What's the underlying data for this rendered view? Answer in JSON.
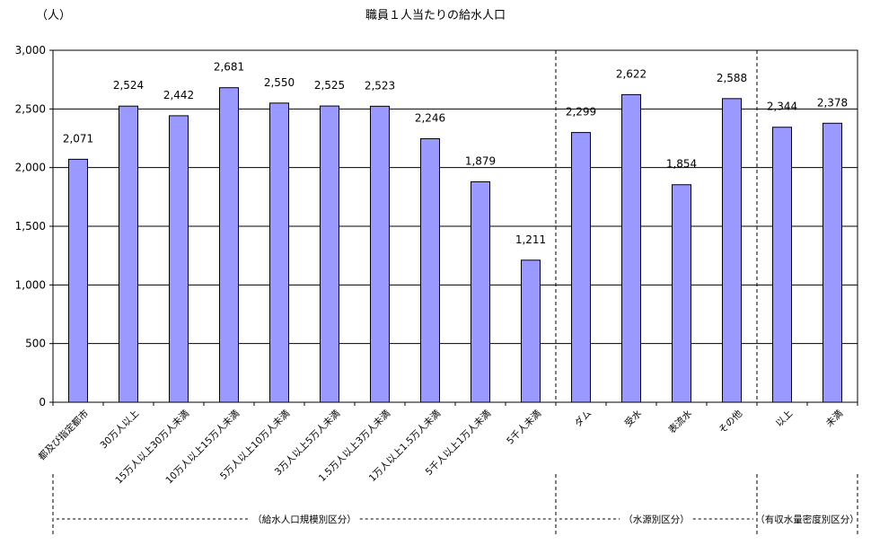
{
  "chart_data": {
    "type": "bar",
    "title": "職員１人当たりの給水人口",
    "ylabel": "（人）",
    "ylim": [
      0,
      3000
    ],
    "yticks": [
      0,
      500,
      1000,
      1500,
      2000,
      2500,
      3000
    ],
    "ytick_labels": [
      "0",
      "500",
      "1,000",
      "1,500",
      "2,000",
      "2,500",
      "3,000"
    ],
    "grid": true,
    "bar_color": "#9999ff",
    "categories": [
      "都及び指定都市",
      "30万人以上",
      "15万人以上30万人未満",
      "10万人以上15万人未満",
      "5万人以上10万人未満",
      "3万人以上5万人未満",
      "1.5万人以上3万人未満",
      "1万人以上1.5万人未満",
      "5千人以上1万人未満",
      "5千人未満",
      "ダム",
      "受水",
      "表流水",
      "その他",
      "以上",
      "未満"
    ],
    "values": [
      2071,
      2524,
      2442,
      2681,
      2550,
      2525,
      2523,
      2246,
      1879,
      1211,
      2299,
      2622,
      1854,
      2588,
      2344,
      2378
    ],
    "value_labels": [
      "2,071",
      "2,524",
      "2,442",
      "2,681",
      "2,550",
      "2,525",
      "2,523",
      "2,246",
      "1,879",
      "1,211",
      "2,299",
      "2,622",
      "1,854",
      "2,588",
      "2,344",
      "2,378"
    ],
    "groups": [
      {
        "label": "（給水人口規模別区分）",
        "start": 0,
        "end": 9
      },
      {
        "label": "（水源別区分）",
        "start": 10,
        "end": 13
      },
      {
        "label": "（有収水量密度別区分）",
        "start": 14,
        "end": 15
      }
    ]
  }
}
